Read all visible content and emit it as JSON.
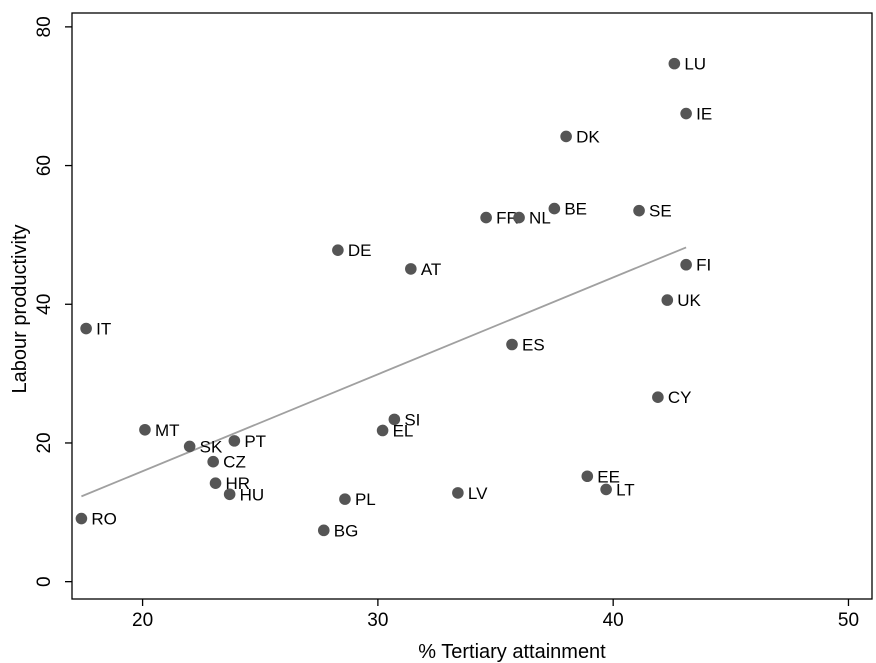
{
  "chart_data": {
    "type": "scatter",
    "xlabel": "% Tertiary attainment",
    "ylabel": "Labour productivity",
    "xlim": [
      17,
      51
    ],
    "ylim": [
      -2.5,
      82
    ],
    "xticks": [
      20,
      30,
      40,
      50
    ],
    "yticks": [
      0,
      20,
      40,
      60,
      80
    ],
    "grid": false,
    "colors": {
      "marker": "#555555",
      "fit_line": "#a0a0a0"
    },
    "points": [
      {
        "label": "LU",
        "x": 42.6,
        "y": 74.7
      },
      {
        "label": "IE",
        "x": 43.1,
        "y": 67.5
      },
      {
        "label": "DK",
        "x": 38.0,
        "y": 64.2
      },
      {
        "label": "BE",
        "x": 37.5,
        "y": 53.8
      },
      {
        "label": "SE",
        "x": 41.1,
        "y": 53.5
      },
      {
        "label": "FR",
        "x": 34.6,
        "y": 52.5
      },
      {
        "label": "NL",
        "x": 36.0,
        "y": 52.5
      },
      {
        "label": "DE",
        "x": 28.3,
        "y": 47.8
      },
      {
        "label": "AT",
        "x": 31.4,
        "y": 45.1
      },
      {
        "label": "FI",
        "x": 43.1,
        "y": 45.7
      },
      {
        "label": "UK",
        "x": 42.3,
        "y": 40.6
      },
      {
        "label": "IT",
        "x": 17.6,
        "y": 36.5
      },
      {
        "label": "ES",
        "x": 35.7,
        "y": 34.2
      },
      {
        "label": "CY",
        "x": 41.9,
        "y": 26.6
      },
      {
        "label": "SI",
        "x": 30.7,
        "y": 23.4
      },
      {
        "label": "EL",
        "x": 30.2,
        "y": 21.8
      },
      {
        "label": "MT",
        "x": 20.1,
        "y": 21.9
      },
      {
        "label": "PT",
        "x": 23.9,
        "y": 20.3
      },
      {
        "label": "SK",
        "x": 22.0,
        "y": 19.5
      },
      {
        "label": "CZ",
        "x": 23.0,
        "y": 17.3
      },
      {
        "label": "EE",
        "x": 38.9,
        "y": 15.2
      },
      {
        "label": "LT",
        "x": 39.7,
        "y": 13.3
      },
      {
        "label": "HR",
        "x": 23.1,
        "y": 14.2
      },
      {
        "label": "HU",
        "x": 23.7,
        "y": 12.6
      },
      {
        "label": "LV",
        "x": 33.4,
        "y": 12.8
      },
      {
        "label": "PL",
        "x": 28.6,
        "y": 11.9
      },
      {
        "label": "RO",
        "x": 17.4,
        "y": 9.1
      },
      {
        "label": "BG",
        "x": 27.7,
        "y": 7.4
      }
    ],
    "fit_line": {
      "x": [
        17.4,
        43.1
      ],
      "y": [
        12.3,
        48.2
      ]
    }
  }
}
